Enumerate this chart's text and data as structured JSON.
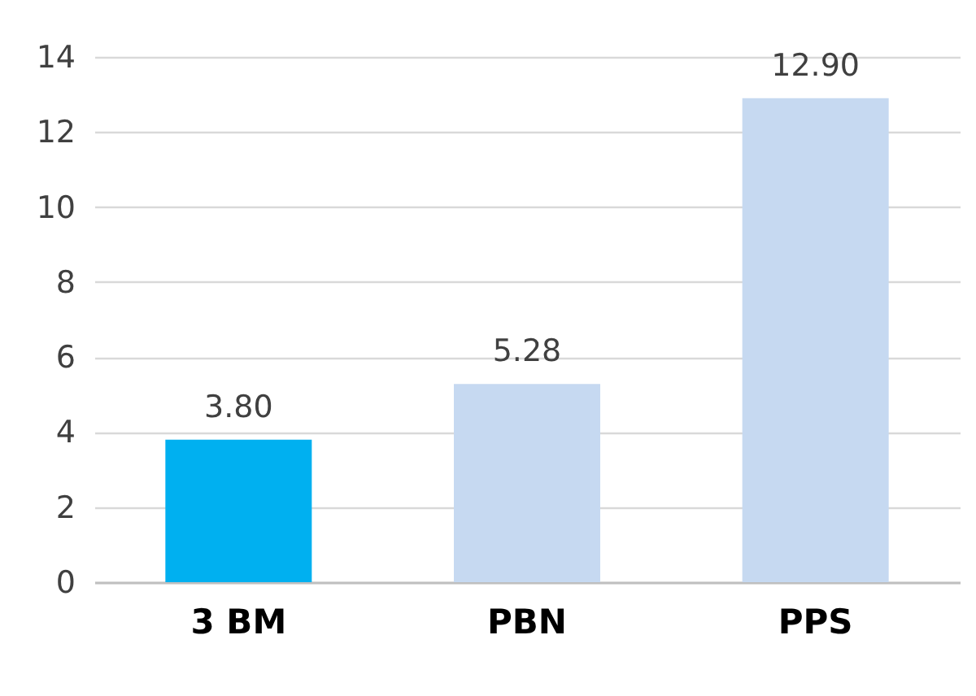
{
  "chart_data": {
    "type": "bar",
    "categories": [
      "3 BM",
      "PBN",
      "PPS"
    ],
    "values": [
      3.8,
      5.28,
      12.9
    ],
    "colors": [
      "#00b0f0",
      "#c6d9f1",
      "#c6d9f1"
    ],
    "value_labels": [
      "3.80",
      "5.28",
      "12.90"
    ],
    "ylim": [
      0,
      14
    ],
    "yticks": [
      0,
      2,
      4,
      6,
      8,
      10,
      12,
      14
    ],
    "grid": "y"
  }
}
